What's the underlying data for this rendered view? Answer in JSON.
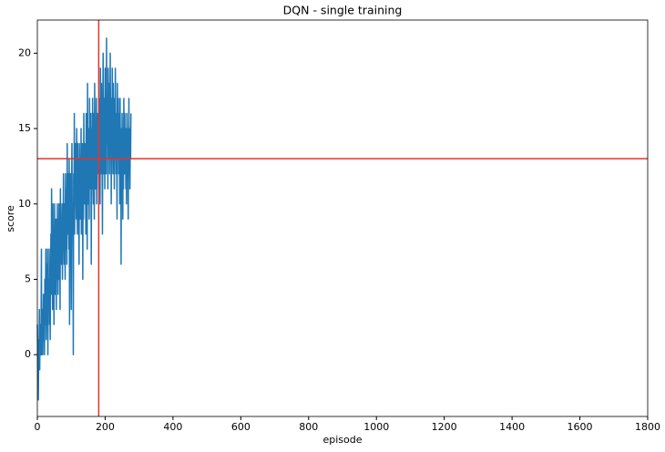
{
  "chart_data": {
    "type": "line",
    "title": "DQN - single training",
    "x_label": "episode",
    "y_label": "score",
    "series": [
      {
        "color": "#1f77b4",
        "values": [
          2,
          0,
          -1,
          -3,
          1,
          0,
          3,
          -1,
          2,
          1,
          0,
          2,
          7,
          0,
          1,
          3,
          0,
          2,
          4,
          1,
          3,
          0,
          5,
          2,
          4,
          7,
          1,
          3,
          6,
          2,
          7,
          0,
          4,
          5,
          3,
          7,
          2,
          6,
          1,
          5,
          8,
          4,
          11,
          6,
          9,
          3,
          10,
          5,
          8,
          2,
          7,
          10,
          4,
          9,
          6,
          8,
          3,
          9,
          5,
          10,
          7,
          4,
          9,
          6,
          10,
          5,
          8,
          3,
          11,
          7,
          9,
          6,
          8,
          10,
          5,
          9,
          7,
          12,
          8,
          6,
          10,
          8,
          5,
          12,
          9,
          7,
          11,
          6,
          14,
          9,
          8,
          12,
          10,
          7,
          13,
          2,
          10,
          8,
          12,
          9,
          3,
          11,
          14,
          8,
          10,
          7,
          0,
          12,
          9,
          16,
          8,
          13,
          10,
          14,
          11,
          9,
          15,
          12,
          8,
          14,
          11,
          13,
          10,
          6,
          14,
          12,
          9,
          13,
          11,
          15,
          8,
          12,
          10,
          14,
          5,
          12,
          9,
          16,
          11,
          13,
          10,
          14,
          12,
          8,
          16,
          11,
          13,
          7,
          18,
          12,
          10,
          15,
          13,
          9,
          17,
          11,
          14,
          12,
          16,
          6,
          13,
          15,
          11,
          17,
          12,
          10,
          16,
          13,
          9,
          18,
          14,
          11,
          15,
          12,
          17,
          10,
          14,
          13,
          16,
          12,
          15,
          11,
          17,
          13,
          16,
          10,
          19,
          14,
          12,
          18,
          15,
          13,
          8,
          16,
          20,
          14,
          12,
          17,
          15,
          11,
          19,
          13,
          16,
          12,
          21,
          15,
          14,
          17,
          11,
          19,
          16,
          13,
          18,
          12,
          15,
          20,
          14,
          17,
          10,
          16,
          13,
          19,
          15,
          12,
          18,
          14,
          16,
          11,
          17,
          13,
          19,
          15,
          12,
          16,
          14,
          9,
          18,
          13,
          15,
          17,
          12,
          16,
          14,
          10,
          17,
          13,
          15,
          6,
          14,
          12,
          16,
          13,
          9,
          15,
          11,
          17,
          14,
          12,
          16,
          13,
          15,
          11,
          14,
          10,
          16,
          12,
          15,
          13,
          9,
          14,
          17,
          12,
          15,
          11,
          14,
          13,
          16
        ]
      }
    ],
    "reference_lines": [
      {
        "axis": "y",
        "value": 13,
        "color": "#e8312a"
      },
      {
        "axis": "x",
        "value": 181,
        "color": "#e8312a"
      }
    ],
    "xlim": [
      0,
      1800
    ],
    "xticks": [
      0,
      200,
      400,
      600,
      800,
      1000,
      1200,
      1400,
      1600,
      1800
    ],
    "ylim": [
      -4.1,
      22.2
    ],
    "yticks": [
      0,
      5,
      10,
      15,
      20
    ]
  }
}
